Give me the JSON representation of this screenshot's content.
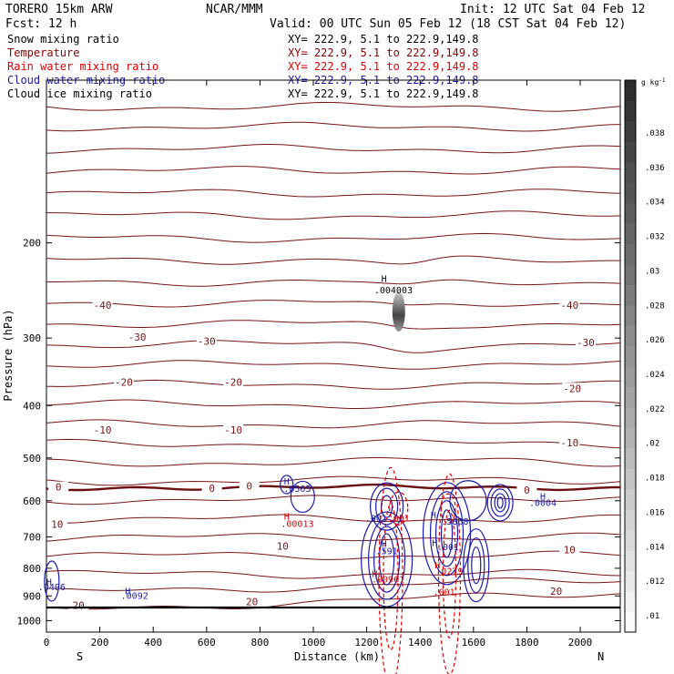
{
  "header": {
    "model": "TORERO  15km ARW",
    "org": "NCAR/MMM",
    "init": "Init: 12 UTC Sat 04 Feb 12",
    "fcst": "Fcst:   12 h",
    "valid": "Valid: 00 UTC Sun 05 Feb 12 (18 CST Sat 04 Feb 12)"
  },
  "legend": [
    {
      "name": "Snow mixing ratio",
      "xy": "XY= 222.9,  5.1 to 222.9,149.8",
      "color": "#000000"
    },
    {
      "name": "Temperature",
      "xy": "XY= 222.9,  5.1 to 222.9,149.8",
      "color": "#8b0000"
    },
    {
      "name": "Rain water mixing ratio",
      "xy": "XY= 222.9,  5.1 to 222.9,149.8",
      "color": "#dd0000"
    },
    {
      "name": "Cloud water mixing ratio",
      "xy": "XY= 222.9,  5.1 to 222.9,149.8",
      "color": "#1a1aaa"
    },
    {
      "name": "Cloud ice mixing ratio",
      "xy": "XY= 222.9,  5.1 to 222.9,149.8",
      "color": "#000000"
    }
  ],
  "colors": {
    "temperature": "#7a1414",
    "freezing": "#6a0f0f",
    "rain": "#dd0000",
    "cloud_water": "#1a1aaa",
    "snow": "#555555",
    "axis": "#000000"
  },
  "chart_data": {
    "type": "contour",
    "xlabel": "Distance (km)",
    "ylabel": "Pressure (hPa)",
    "xlim": [
      0,
      2150
    ],
    "ylim": [
      1050,
      100
    ],
    "yscale": "log",
    "x_ticks": [
      0,
      200,
      400,
      600,
      800,
      1000,
      1200,
      1400,
      1600,
      1800,
      2000
    ],
    "y_ticks": [
      200,
      300,
      400,
      500,
      600,
      700,
      800,
      900,
      1000
    ],
    "x_end_labels": {
      "left": "S",
      "right": "N"
    },
    "colorbar": {
      "unit": "g kg",
      "unit_exp": "-1",
      "ticks": [
        ".01",
        ".012",
        ".014",
        ".016",
        ".018",
        ".02",
        ".022",
        ".024",
        ".026",
        ".028",
        ".03",
        ".032",
        ".034",
        ".036",
        ".038"
      ]
    },
    "temperature_labels": [
      {
        "text": "-40",
        "x": 210,
        "p": 262
      },
      {
        "text": "-40",
        "x": 1960,
        "p": 262
      },
      {
        "text": "-30",
        "x": 340,
        "p": 300
      },
      {
        "text": "-30",
        "x": 600,
        "p": 305
      },
      {
        "text": "-30",
        "x": 2020,
        "p": 307
      },
      {
        "text": "-20",
        "x": 290,
        "p": 363
      },
      {
        "text": "-20",
        "x": 700,
        "p": 363
      },
      {
        "text": "-20",
        "x": 1970,
        "p": 373
      },
      {
        "text": "-10",
        "x": 210,
        "p": 445
      },
      {
        "text": "-10",
        "x": 700,
        "p": 445
      },
      {
        "text": "-10",
        "x": 1960,
        "p": 470
      },
      {
        "text": "0",
        "x": 45,
        "p": 568
      },
      {
        "text": "0",
        "x": 620,
        "p": 571
      },
      {
        "text": "0",
        "x": 760,
        "p": 566
      },
      {
        "text": "0",
        "x": 1800,
        "p": 575
      },
      {
        "text": "10",
        "x": 40,
        "p": 665
      },
      {
        "text": "10",
        "x": 885,
        "p": 730
      },
      {
        "text": "10",
        "x": 1960,
        "p": 742
      },
      {
        "text": "20",
        "x": 120,
        "p": 940
      },
      {
        "text": "20",
        "x": 770,
        "p": 925
      },
      {
        "text": "20",
        "x": 1910,
        "p": 885
      }
    ],
    "maxima": [
      {
        "text": ".004003",
        "x": 1300,
        "p": 248,
        "color": "#000000"
      },
      {
        "text": ".0565",
        "x": 940,
        "p": 578,
        "color": "#1a1aaa"
      },
      {
        "text": ".0004",
        "x": 1860,
        "p": 613,
        "color": "#1a1aaa"
      },
      {
        "text": ".00013",
        "x": 940,
        "p": 671,
        "color": "#dd0000"
      },
      {
        "text": ".001",
        "x": 1235,
        "p": 655,
        "color": "#1a1aaa"
      },
      {
        "text": ".001",
        "x": 1320,
        "p": 655,
        "color": "#dd0000"
      },
      {
        "text": ".5868",
        "x": 1530,
        "p": 664,
        "color": "#1a1aaa"
      },
      {
        "text": ".591",
        "x": 1275,
        "p": 753,
        "color": "#1a1aaa"
      },
      {
        "text": ".001",
        "x": 1505,
        "p": 741,
        "color": "#1a1aaa"
      },
      {
        "text": ".0279",
        "x": 1510,
        "p": 820,
        "color": "#dd0000"
      },
      {
        "text": ".00961",
        "x": 1280,
        "p": 850,
        "color": "#dd0000"
      },
      {
        "text": ".0406",
        "x": 20,
        "p": 878,
        "color": "#1a1aaa"
      },
      {
        "text": ".0092",
        "x": 330,
        "p": 912,
        "color": "#1a1aaa"
      },
      {
        "text": ".001",
        "x": 1490,
        "p": 898,
        "color": "#dd0000"
      }
    ],
    "h_markers": [
      {
        "x": 1265,
        "p": 236,
        "color": "#000000"
      },
      {
        "x": 900,
        "p": 560,
        "color": "#1a1aaa"
      },
      {
        "x": 1860,
        "p": 597,
        "color": "#1a1aaa"
      },
      {
        "x": 900,
        "p": 650,
        "color": "#dd0000"
      },
      {
        "x": 1450,
        "p": 647,
        "color": "#1a1aaa"
      },
      {
        "x": 1265,
        "p": 730,
        "color": "#1a1aaa"
      },
      {
        "x": 1455,
        "p": 728,
        "color": "#1a1aaa"
      },
      {
        "x": 1465,
        "p": 800,
        "color": "#dd0000"
      },
      {
        "x": 1230,
        "p": 830,
        "color": "#dd0000"
      },
      {
        "x": 10,
        "p": 860,
        "color": "#1a1aaa"
      },
      {
        "x": 305,
        "p": 893,
        "color": "#1a1aaa"
      }
    ]
  }
}
